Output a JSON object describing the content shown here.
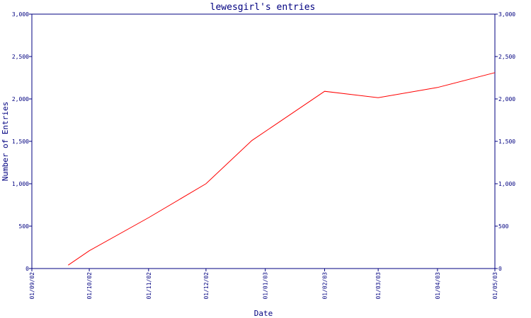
{
  "chart_data": {
    "type": "line",
    "title": "lewesgirl's entries",
    "xlabel": "Date",
    "ylabel": "Number of Entries",
    "x_ticks": [
      "01/09/02",
      "01/10/02",
      "01/11/02",
      "01/12/02",
      "01/01/03",
      "01/02/03",
      "01/03/03",
      "01/04/03",
      "01/05/03"
    ],
    "y_ticks": [
      "0",
      "500",
      "1,000",
      "1,500",
      "2,000",
      "2,500",
      "3,000"
    ],
    "y_right_ticks": [
      "0",
      "500",
      "1,000",
      "1,500",
      "2,000",
      "2,500",
      "3,000"
    ],
    "ylim": [
      0,
      3000
    ],
    "xlim": [
      "2002-09-01",
      "2003-05-01"
    ],
    "grid": false,
    "colors": {
      "axis": "#000080",
      "line": "#ff0000",
      "text": "#000080",
      "background": "#ffffff"
    },
    "series": [
      {
        "color": "#ff0000",
        "x": [
          "2002-09-20",
          "2002-10-01",
          "2002-11-01",
          "2002-12-01",
          "2002-12-25",
          "2003-02-01",
          "2003-03-01",
          "2003-04-01",
          "2003-05-01"
        ],
        "y": [
          40,
          210,
          600,
          1000,
          1510,
          2090,
          2015,
          2135,
          2310
        ]
      }
    ]
  }
}
